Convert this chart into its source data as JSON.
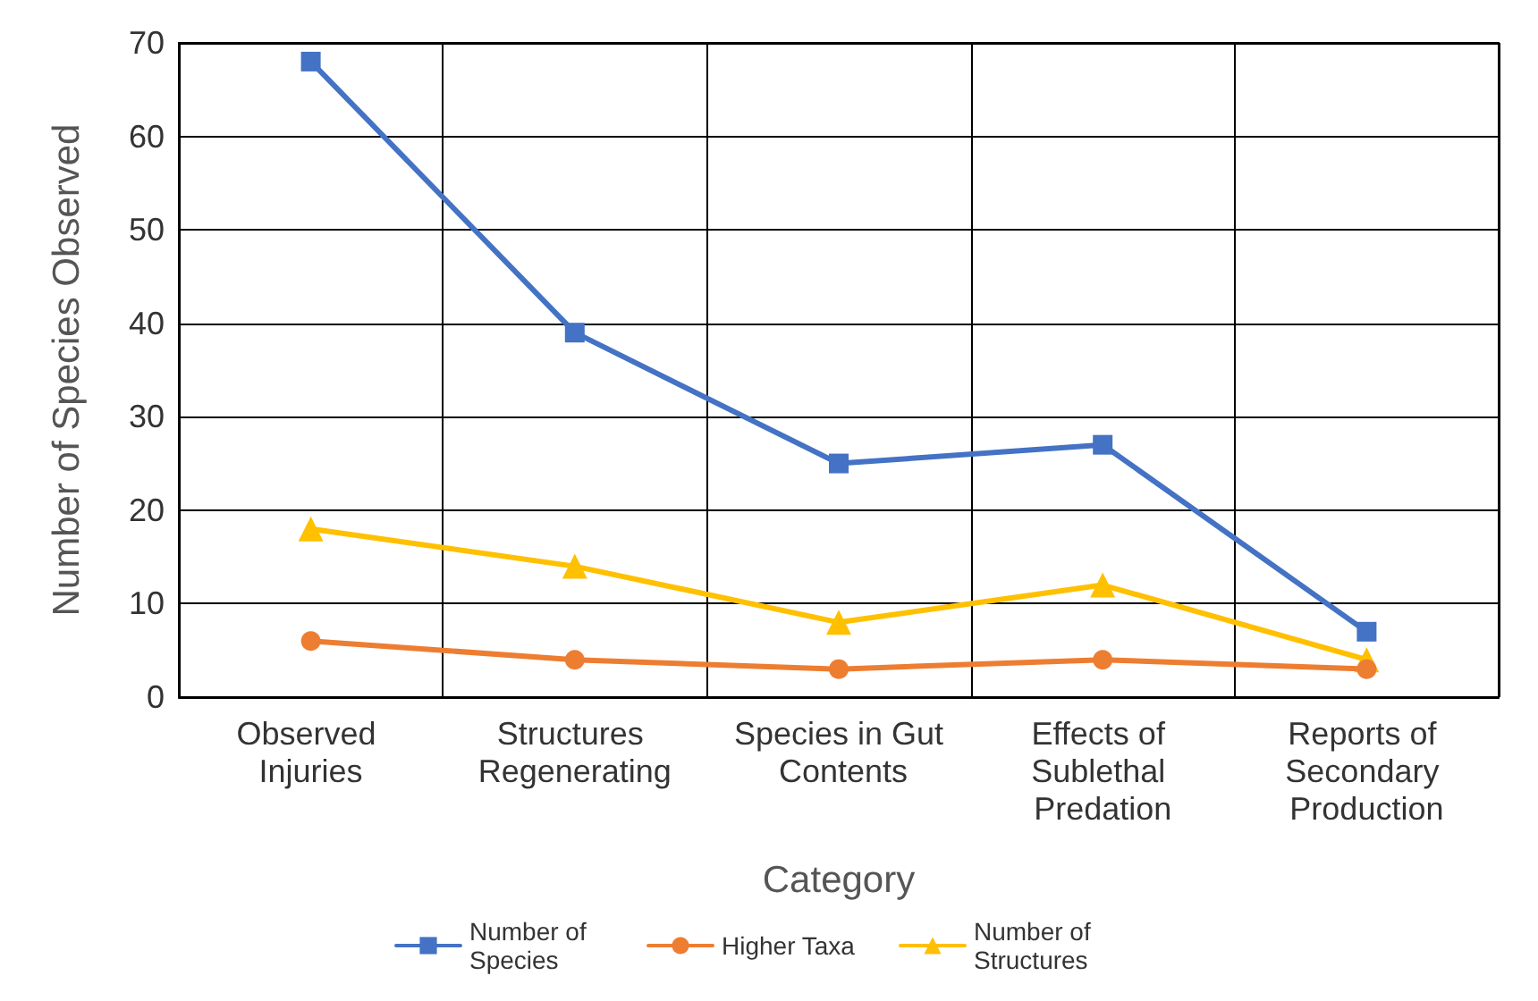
{
  "chart_data": {
    "type": "line",
    "xlabel": "Category",
    "ylabel": "Number of Species Observed",
    "categories": [
      "Observed Injuries",
      "Structures Regenerating",
      "Species in Gut Contents",
      "Effects of Sublethal Predation",
      "Reports of Secondary Production"
    ],
    "series": [
      {
        "name": "Number of Species",
        "color": "#4472c4",
        "marker": "square",
        "values": [
          68,
          39,
          25,
          27,
          7
        ]
      },
      {
        "name": "Higher Taxa",
        "color": "#ed7d31",
        "marker": "circle",
        "values": [
          6,
          4,
          3,
          4,
          3
        ]
      },
      {
        "name": "Number of Structures",
        "color": "#ffc000",
        "marker": "triangle",
        "values": [
          18,
          14,
          8,
          12,
          4
        ]
      }
    ],
    "ylim": [
      0,
      70
    ],
    "yticks": [
      0,
      10,
      20,
      30,
      40,
      50,
      60,
      70
    ],
    "grid": true,
    "legend": "bottom",
    "line_style": "solid"
  }
}
